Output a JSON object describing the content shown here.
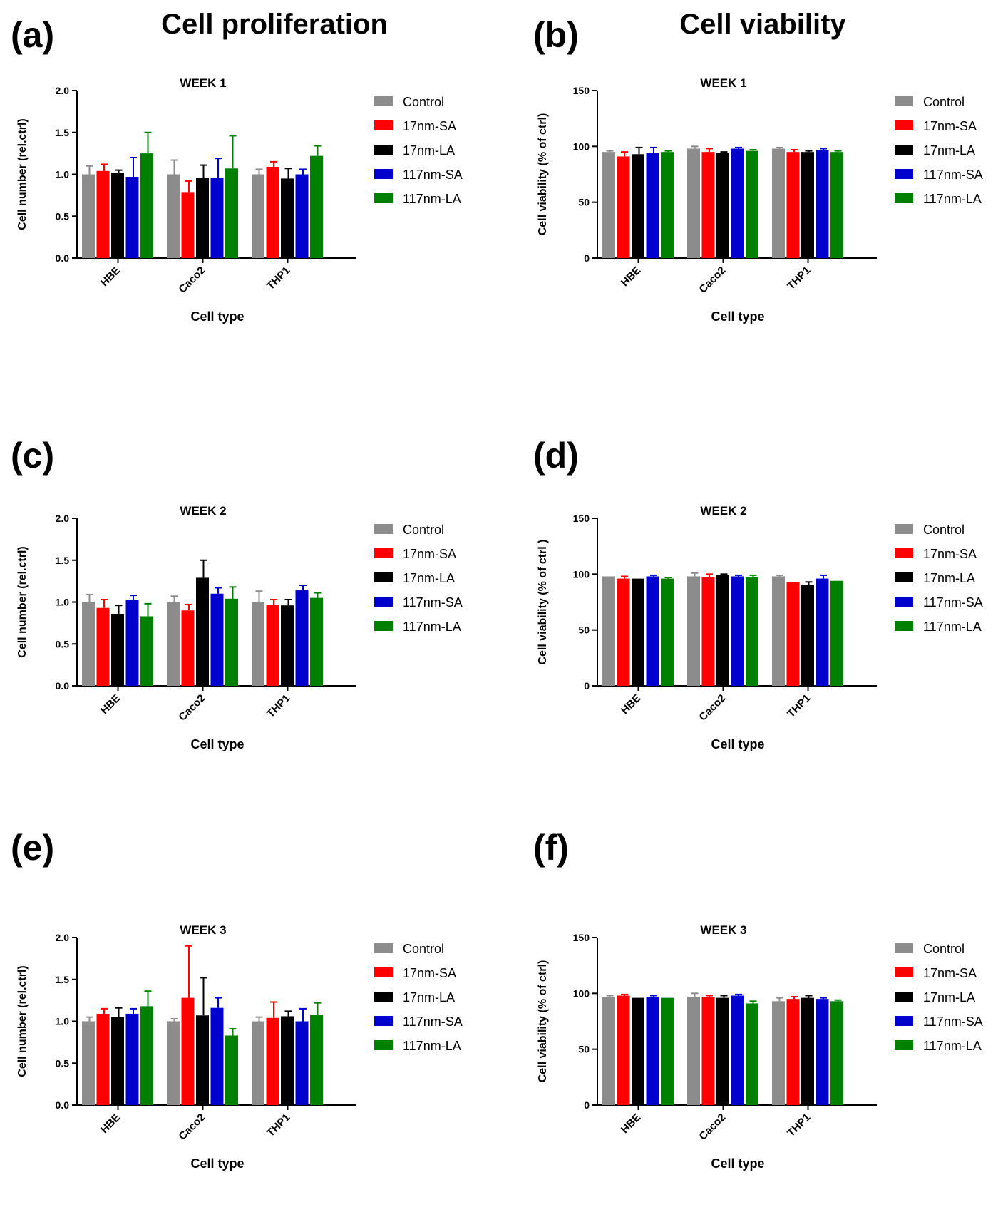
{
  "headings": {
    "left": "Cell proliferation",
    "right": "Cell viability"
  },
  "colors": {
    "Control": "#8c8c8c",
    "17nm-SA": "#ff0000",
    "17nm-LA": "#000000",
    "117nm-SA": "#0000cc",
    "117nm-LA": "#008000"
  },
  "chart_data": [
    {
      "panel": "(a)",
      "type": "bar",
      "title": "WEEK 1",
      "xlabel": "Cell type",
      "ylabel": "Cell number (rel.ctrl)",
      "categories": [
        "HBE",
        "Caco2",
        "THP1"
      ],
      "ylim": [
        0,
        2.0
      ],
      "yticks": [
        "0.0",
        "0.5",
        "1.0",
        "1.5",
        "2.0"
      ],
      "legend_position": "right",
      "series": [
        {
          "name": "Control",
          "values": [
            1.0,
            1.0,
            1.0
          ],
          "errors": [
            0.1,
            0.17,
            0.06
          ]
        },
        {
          "name": "17nm-SA",
          "values": [
            1.04,
            0.78,
            1.09
          ],
          "errors": [
            0.08,
            0.14,
            0.06
          ]
        },
        {
          "name": "17nm-LA",
          "values": [
            1.02,
            0.96,
            0.95
          ],
          "errors": [
            0.03,
            0.15,
            0.12
          ]
        },
        {
          "name": "117nm-SA",
          "values": [
            0.97,
            0.96,
            1.0
          ],
          "errors": [
            0.23,
            0.23,
            0.06
          ]
        },
        {
          "name": "117nm-LA",
          "values": [
            1.25,
            1.07,
            1.22
          ],
          "errors": [
            0.25,
            0.39,
            0.12
          ]
        }
      ]
    },
    {
      "panel": "(b)",
      "type": "bar",
      "title": "WEEK 1",
      "xlabel": "Cell type",
      "ylabel": "Cell viability (% of ctrl)",
      "categories": [
        "HBE",
        "Caco2",
        "THP1"
      ],
      "ylim": [
        0,
        150
      ],
      "yticks": [
        "0",
        "50",
        "100",
        "150"
      ],
      "legend_position": "right",
      "series": [
        {
          "name": "Control",
          "values": [
            95,
            98,
            98
          ],
          "errors": [
            1,
            2,
            1
          ]
        },
        {
          "name": "17nm-SA",
          "values": [
            91,
            95,
            95
          ],
          "errors": [
            4,
            3,
            2
          ]
        },
        {
          "name": "17nm-LA",
          "values": [
            93,
            94,
            95
          ],
          "errors": [
            6,
            1,
            1
          ]
        },
        {
          "name": "117nm-SA",
          "values": [
            94,
            98,
            97
          ],
          "errors": [
            5,
            1,
            1
          ]
        },
        {
          "name": "117nm-LA",
          "values": [
            95,
            96,
            95
          ],
          "errors": [
            1,
            1,
            1
          ]
        }
      ]
    },
    {
      "panel": "(c)",
      "type": "bar",
      "title": "WEEK 2",
      "xlabel": "Cell type",
      "ylabel": "Cell number (rel.ctrl)",
      "categories": [
        "HBE",
        "Caco2",
        "THP1"
      ],
      "ylim": [
        0,
        2.0
      ],
      "yticks": [
        "0.0",
        "0.5",
        "1.0",
        "1.5",
        "2.0"
      ],
      "legend_position": "right",
      "series": [
        {
          "name": "Control",
          "values": [
            1.0,
            1.0,
            1.0
          ],
          "errors": [
            0.09,
            0.07,
            0.13
          ]
        },
        {
          "name": "17nm-SA",
          "values": [
            0.93,
            0.9,
            0.97
          ],
          "errors": [
            0.1,
            0.07,
            0.06
          ]
        },
        {
          "name": "17nm-LA",
          "values": [
            0.86,
            1.29,
            0.96
          ],
          "errors": [
            0.1,
            0.21,
            0.07
          ]
        },
        {
          "name": "117nm-SA",
          "values": [
            1.03,
            1.1,
            1.14
          ],
          "errors": [
            0.05,
            0.07,
            0.06
          ]
        },
        {
          "name": "117nm-LA",
          "values": [
            0.83,
            1.04,
            1.05
          ],
          "errors": [
            0.15,
            0.14,
            0.06
          ]
        }
      ]
    },
    {
      "panel": "(d)",
      "type": "bar",
      "title": "WEEK 2",
      "xlabel": "Cell type",
      "ylabel": "Cell viability (% of ctrl )",
      "categories": [
        "HBE",
        "Caco2",
        "THP1"
      ],
      "ylim": [
        0,
        150
      ],
      "yticks": [
        "0",
        "50",
        "100",
        "150"
      ],
      "legend_position": "right",
      "series": [
        {
          "name": "Control",
          "values": [
            98,
            98,
            98
          ],
          "errors": [
            0,
            3,
            1
          ]
        },
        {
          "name": "17nm-SA",
          "values": [
            96,
            97,
            93
          ],
          "errors": [
            2,
            3,
            0
          ]
        },
        {
          "name": "17nm-LA",
          "values": [
            96,
            99,
            90
          ],
          "errors": [
            0,
            1,
            3
          ]
        },
        {
          "name": "117nm-SA",
          "values": [
            98,
            98,
            96
          ],
          "errors": [
            1,
            1,
            3
          ]
        },
        {
          "name": "117nm-LA",
          "values": [
            96,
            97,
            94
          ],
          "errors": [
            1,
            2,
            0
          ]
        }
      ]
    },
    {
      "panel": "(e)",
      "type": "bar",
      "title": "WEEK 3",
      "xlabel": "Cell type",
      "ylabel": "Cell number (rel.ctrl)",
      "categories": [
        "HBE",
        "Caco2",
        "THP1"
      ],
      "ylim": [
        0,
        2.0
      ],
      "yticks": [
        "0.0",
        "0.5",
        "1.0",
        "1.5",
        "2.0"
      ],
      "legend_position": "right",
      "series": [
        {
          "name": "Control",
          "values": [
            1.0,
            1.0,
            1.0
          ],
          "errors": [
            0.05,
            0.03,
            0.05
          ]
        },
        {
          "name": "17nm-SA",
          "values": [
            1.09,
            1.28,
            1.04
          ],
          "errors": [
            0.06,
            0.62,
            0.19
          ]
        },
        {
          "name": "17nm-LA",
          "values": [
            1.05,
            1.07,
            1.06
          ],
          "errors": [
            0.11,
            0.45,
            0.06
          ]
        },
        {
          "name": "117nm-SA",
          "values": [
            1.09,
            1.16,
            1.0
          ],
          "errors": [
            0.06,
            0.12,
            0.15
          ]
        },
        {
          "name": "117nm-LA",
          "values": [
            1.18,
            0.83,
            1.08
          ],
          "errors": [
            0.18,
            0.08,
            0.14
          ]
        }
      ]
    },
    {
      "panel": "(f)",
      "type": "bar",
      "title": "WEEK 3",
      "xlabel": "Cell type",
      "ylabel": "Cell viability (% of ctrl)",
      "categories": [
        "HBE",
        "Caco2",
        "THP1"
      ],
      "ylim": [
        0,
        150
      ],
      "yticks": [
        "0",
        "50",
        "100",
        "150"
      ],
      "legend_position": "right",
      "series": [
        {
          "name": "Control",
          "values": [
            97,
            97,
            93
          ],
          "errors": [
            1,
            3,
            3
          ]
        },
        {
          "name": "17nm-SA",
          "values": [
            98,
            97,
            95
          ],
          "errors": [
            1,
            1,
            2
          ]
        },
        {
          "name": "17nm-LA",
          "values": [
            96,
            96,
            96
          ],
          "errors": [
            0,
            2,
            2
          ]
        },
        {
          "name": "117nm-SA",
          "values": [
            97,
            98,
            95
          ],
          "errors": [
            1,
            1,
            1
          ]
        },
        {
          "name": "117nm-LA",
          "values": [
            96,
            91,
            93
          ],
          "errors": [
            0,
            2,
            1
          ]
        }
      ]
    }
  ]
}
